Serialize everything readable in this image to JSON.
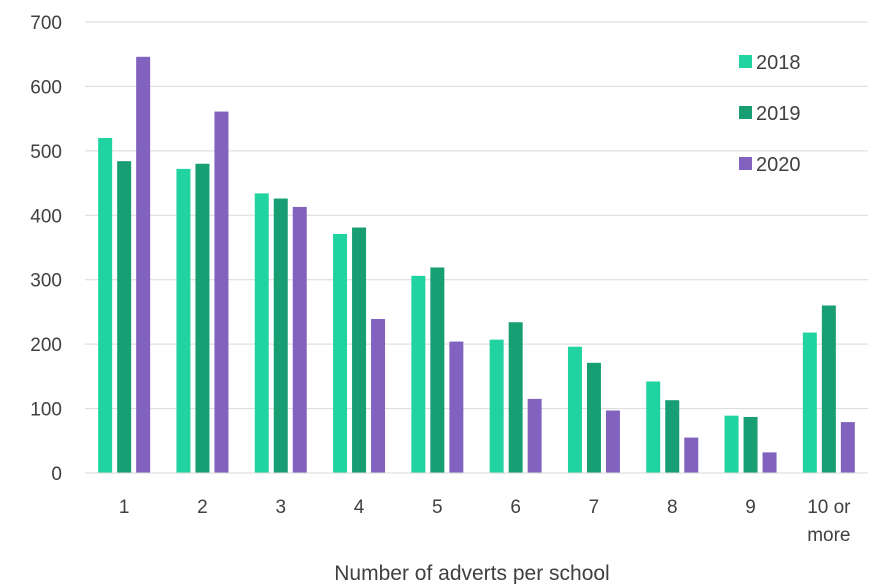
{
  "chart_data": {
    "type": "bar",
    "categories": [
      "1",
      "2",
      "3",
      "4",
      "5",
      "6",
      "7",
      "8",
      "9",
      "10 or more"
    ],
    "category_lines": [
      [
        "1"
      ],
      [
        "2"
      ],
      [
        "3"
      ],
      [
        "4"
      ],
      [
        "5"
      ],
      [
        "6"
      ],
      [
        "7"
      ],
      [
        "8"
      ],
      [
        "9"
      ],
      [
        "10 or",
        "more"
      ]
    ],
    "series": [
      {
        "name": "2018",
        "color": "#22d3a2",
        "values": [
          520,
          472,
          434,
          371,
          306,
          207,
          196,
          142,
          89,
          218
        ]
      },
      {
        "name": "2019",
        "color": "#179e73",
        "values": [
          484,
          480,
          426,
          381,
          319,
          234,
          171,
          113,
          87,
          260
        ]
      },
      {
        "name": "2020",
        "color": "#8163bf",
        "values": [
          646,
          561,
          413,
          239,
          204,
          115,
          97,
          55,
          32,
          79
        ]
      }
    ],
    "xlabel": "Number of adverts per school",
    "ylabel": "",
    "ylim": [
      0,
      700
    ],
    "yticks": [
      0,
      100,
      200,
      300,
      400,
      500,
      600,
      700
    ],
    "grid": true,
    "legend_position": "top-right"
  }
}
